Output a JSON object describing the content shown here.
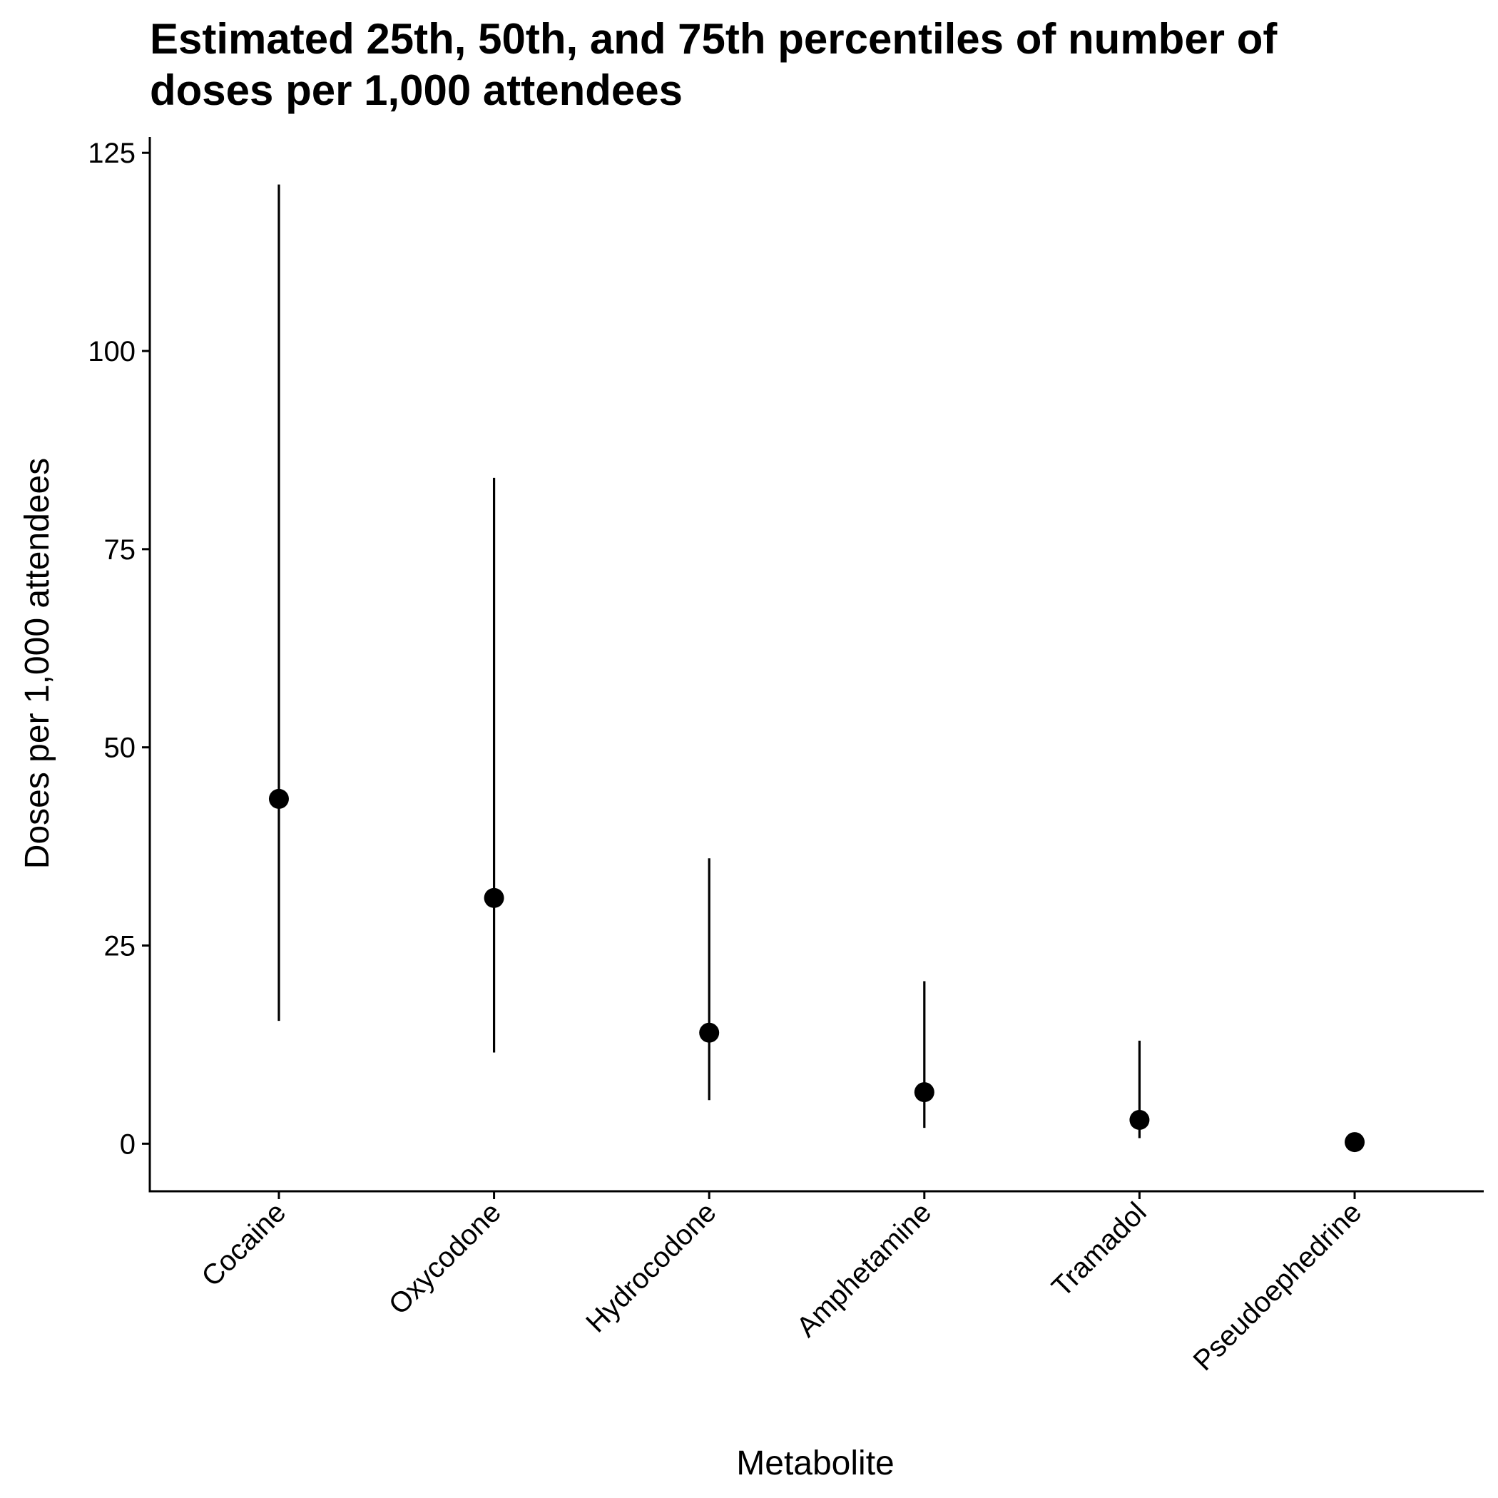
{
  "chart_data": {
    "type": "pointrange",
    "title_lines": [
      "Estimated 25th, 50th, and 75th percentiles of number of",
      "doses per 1,000 attendees"
    ],
    "xlabel": "Metabolite",
    "ylabel": "Doses per 1,000 attendees",
    "ylim": [
      -6,
      127
    ],
    "yticks": [
      0,
      25,
      50,
      75,
      100,
      125
    ],
    "ytick_labels": [
      "0",
      "25",
      "50",
      "75",
      "100",
      "125"
    ],
    "categories": [
      "Cocaine",
      "Oxycodone",
      "Hydrocodone",
      "Amphetamine",
      "Tramadol",
      "Pseudoephedrine"
    ],
    "series": [
      {
        "p25": [
          15.5,
          11.5,
          5.5,
          2.0,
          0.7,
          0.0
        ],
        "median": [
          43.5,
          31.0,
          14.0,
          6.5,
          3.0,
          0.2
        ],
        "p75": [
          121.0,
          84.0,
          36.0,
          20.5,
          13.0,
          1.2
        ]
      }
    ],
    "grid": false,
    "legend": "none",
    "colors": {
      "points": "#000000",
      "lines": "#000000",
      "background": "#ffffff"
    }
  }
}
